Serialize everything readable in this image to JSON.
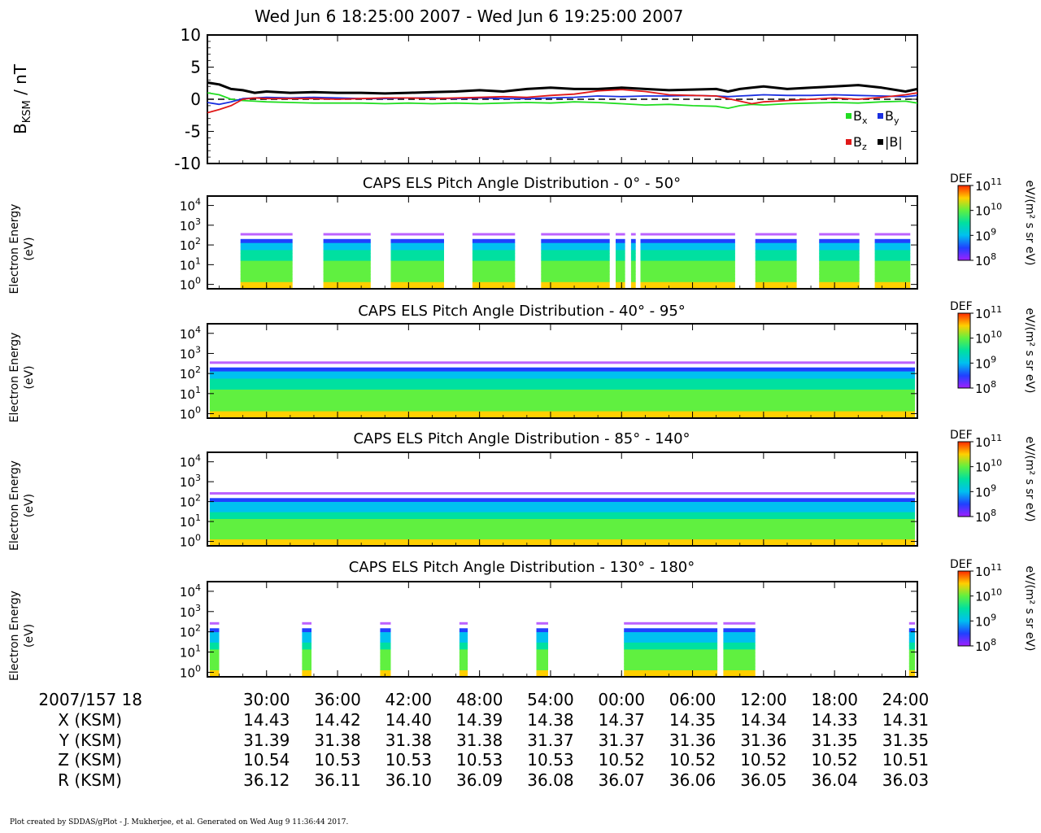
{
  "header": {
    "title": "Wed Jun 6 18:25:00 2007 - Wed Jun 6 19:25:00 2007"
  },
  "footer": {
    "text": "Plot created by SDDAS/gPlot - J. Mukherjee, et al.  Generated on Wed Aug 9 11:36:44 2017."
  },
  "colors": {
    "bx": "#22dd22",
    "by": "#1a2fe0",
    "bz": "#e01818",
    "b_total": "#000000",
    "colormap": [
      "#ff2a00",
      "#ffd000",
      "#60f040",
      "#00e0a0",
      "#00c0f0",
      "#2040ff",
      "#a020ff"
    ]
  },
  "chart_data": [
    {
      "type": "line",
      "ylabel": "B_KSM / nT",
      "ylabel_main": "B",
      "ylabel_sub": "KSM",
      "ylabel_unit": " / nT",
      "ylim": [
        -10,
        10
      ],
      "yticks": [
        -10,
        -5,
        0,
        5,
        10
      ],
      "xlim_minutes": [
        25,
        85
      ],
      "reference_line": 0,
      "legend_placement": "bottom-right",
      "legend": [
        {
          "key": "bx",
          "label": "B",
          "sub": "x"
        },
        {
          "key": "by",
          "label": "B",
          "sub": "y"
        },
        {
          "key": "bz",
          "label": "B",
          "sub": "z"
        },
        {
          "key": "b_total",
          "label": "|B|",
          "sub": ""
        }
      ],
      "x": [
        25,
        26,
        27,
        28,
        29,
        30,
        32,
        34,
        36,
        38,
        40,
        42,
        44,
        46,
        48,
        50,
        52,
        54,
        56,
        58,
        60,
        62,
        64,
        66,
        68,
        69,
        70,
        71,
        72,
        74,
        76,
        78,
        80,
        82,
        84,
        85
      ],
      "series": [
        {
          "name": "Bx",
          "key": "bx",
          "values": [
            1.0,
            0.7,
            0.0,
            -0.2,
            -0.3,
            -0.4,
            -0.5,
            -0.6,
            -0.6,
            -0.6,
            -0.7,
            -0.6,
            -0.7,
            -0.6,
            -0.7,
            -0.6,
            -0.5,
            -0.6,
            -0.4,
            -0.5,
            -0.7,
            -0.9,
            -0.8,
            -1.0,
            -1.1,
            -1.4,
            -1.0,
            -0.8,
            -0.9,
            -0.7,
            -0.6,
            -0.5,
            -0.6,
            -0.4,
            -0.3,
            -0.6
          ]
        },
        {
          "name": "By",
          "key": "by",
          "values": [
            -0.5,
            -0.8,
            -0.4,
            0.1,
            0.2,
            0.3,
            0.2,
            0.3,
            0.2,
            0.1,
            0.1,
            0.2,
            0.2,
            0.1,
            0.2,
            0.1,
            0.1,
            0.2,
            0.3,
            0.5,
            0.4,
            0.5,
            0.5,
            0.6,
            0.5,
            0.4,
            0.5,
            0.6,
            0.7,
            0.6,
            0.6,
            0.7,
            0.6,
            0.5,
            0.4,
            0.6
          ]
        },
        {
          "name": "Bz",
          "key": "bz",
          "values": [
            -2.1,
            -1.6,
            -1.0,
            0.0,
            0.2,
            0.1,
            0.1,
            0.1,
            0.0,
            0.1,
            0.2,
            0.2,
            0.1,
            0.2,
            0.3,
            0.4,
            0.3,
            0.6,
            0.8,
            1.3,
            1.5,
            1.2,
            0.7,
            0.6,
            0.5,
            0.1,
            -0.3,
            -0.7,
            -0.4,
            -0.2,
            0.0,
            0.2,
            0.0,
            0.3,
            0.7,
            1.0
          ]
        },
        {
          "name": "|B|",
          "key": "b_total",
          "values": [
            2.6,
            2.3,
            1.6,
            1.4,
            1.0,
            1.2,
            1.0,
            1.1,
            1.0,
            1.0,
            0.9,
            1.0,
            1.1,
            1.2,
            1.4,
            1.2,
            1.6,
            1.8,
            1.6,
            1.6,
            1.8,
            1.6,
            1.4,
            1.5,
            1.6,
            1.2,
            1.6,
            1.8,
            2.0,
            1.6,
            1.8,
            2.0,
            2.2,
            1.8,
            1.2,
            1.6
          ]
        }
      ]
    },
    {
      "type": "heatmap",
      "title": "CAPS ELS Pitch Angle Distribution - 0° - 50°",
      "ylabel": [
        "Electron Energy",
        "(eV)"
      ],
      "yscale": "log",
      "ylim": [
        0.6,
        30000
      ],
      "yticks": [
        {
          "base": "10",
          "exp": "0"
        },
        {
          "base": "10",
          "exp": "1"
        },
        {
          "base": "10",
          "exp": "2"
        },
        {
          "base": "10",
          "exp": "3"
        },
        {
          "base": "10",
          "exp": "4"
        }
      ],
      "xlim_minutes": [
        25,
        85
      ],
      "top_energy_eV": [
        1,
        200
      ],
      "data_intervals_minutes": [
        [
          27.8,
          32.2
        ],
        [
          34.8,
          38.8
        ],
        [
          40.5,
          45.0
        ],
        [
          47.4,
          51.0
        ],
        [
          53.2,
          59.0
        ],
        [
          59.5,
          60.3
        ],
        [
          60.8,
          61.2
        ],
        [
          61.6,
          69.6
        ],
        [
          71.3,
          74.8
        ],
        [
          76.7,
          80.1
        ],
        [
          81.4,
          84.4
        ]
      ],
      "colorbar": {
        "label": "DEF",
        "unit": "eV/(m² s sr eV)",
        "ticks": [
          {
            "base": "10",
            "exp": "11"
          },
          {
            "base": "10",
            "exp": "10"
          },
          {
            "base": "10",
            "exp": "9"
          },
          {
            "base": "10",
            "exp": "8"
          }
        ]
      }
    },
    {
      "type": "heatmap",
      "title": "CAPS ELS Pitch Angle Distribution - 40° - 95°",
      "ylabel": [
        "Electron Energy",
        "(eV)"
      ],
      "yscale": "log",
      "ylim": [
        0.6,
        30000
      ],
      "yticks": [
        {
          "base": "10",
          "exp": "0"
        },
        {
          "base": "10",
          "exp": "1"
        },
        {
          "base": "10",
          "exp": "2"
        },
        {
          "base": "10",
          "exp": "3"
        },
        {
          "base": "10",
          "exp": "4"
        }
      ],
      "xlim_minutes": [
        25,
        85
      ],
      "top_energy_eV": [
        1,
        200
      ],
      "data_intervals_minutes": [
        [
          25.2,
          84.8
        ]
      ],
      "colorbar": {
        "label": "DEF",
        "unit": "eV/(m² s sr eV)",
        "ticks": [
          {
            "base": "10",
            "exp": "11"
          },
          {
            "base": "10",
            "exp": "10"
          },
          {
            "base": "10",
            "exp": "9"
          },
          {
            "base": "10",
            "exp": "8"
          }
        ]
      }
    },
    {
      "type": "heatmap",
      "title": "CAPS ELS Pitch Angle Distribution - 85° - 140°",
      "ylabel": [
        "Electron Energy",
        "(eV)"
      ],
      "yscale": "log",
      "ylim": [
        0.6,
        30000
      ],
      "yticks": [
        {
          "base": "10",
          "exp": "0"
        },
        {
          "base": "10",
          "exp": "1"
        },
        {
          "base": "10",
          "exp": "2"
        },
        {
          "base": "10",
          "exp": "3"
        },
        {
          "base": "10",
          "exp": "4"
        }
      ],
      "xlim_minutes": [
        25,
        85
      ],
      "top_energy_eV": [
        1,
        150
      ],
      "data_intervals_minutes": [
        [
          25.2,
          84.8
        ]
      ],
      "colorbar": {
        "label": "DEF",
        "unit": "eV/(m² s sr eV)",
        "ticks": [
          {
            "base": "10",
            "exp": "11"
          },
          {
            "base": "10",
            "exp": "10"
          },
          {
            "base": "10",
            "exp": "9"
          },
          {
            "base": "10",
            "exp": "8"
          }
        ]
      }
    },
    {
      "type": "heatmap",
      "title": "CAPS ELS Pitch Angle Distribution - 130° - 180°",
      "ylabel": [
        "Electron Energy",
        "(eV)"
      ],
      "yscale": "log",
      "ylim": [
        0.6,
        30000
      ],
      "yticks": [
        {
          "base": "10",
          "exp": "0"
        },
        {
          "base": "10",
          "exp": "1"
        },
        {
          "base": "10",
          "exp": "2"
        },
        {
          "base": "10",
          "exp": "3"
        },
        {
          "base": "10",
          "exp": "4"
        }
      ],
      "xlim_minutes": [
        25,
        85
      ],
      "top_energy_eV": [
        1,
        150
      ],
      "data_intervals_minutes": [
        [
          25.2,
          26.0
        ],
        [
          33.0,
          33.8
        ],
        [
          39.6,
          40.5
        ],
        [
          46.3,
          47.0
        ],
        [
          52.8,
          53.8
        ],
        [
          60.2,
          68.1
        ],
        [
          68.6,
          71.3
        ],
        [
          84.3,
          84.8
        ]
      ],
      "colorbar": {
        "label": "DEF",
        "unit": "eV/(m² s sr eV)",
        "ticks": [
          {
            "base": "10",
            "exp": "11"
          },
          {
            "base": "10",
            "exp": "10"
          },
          {
            "base": "10",
            "exp": "9"
          },
          {
            "base": "10",
            "exp": "8"
          }
        ]
      }
    }
  ],
  "time_axis": {
    "start_label": "2007/157 18",
    "tick_minutes": [
      30,
      36,
      42,
      48,
      54,
      60,
      66,
      72,
      78,
      84
    ],
    "tick_labels": [
      "30:00",
      "36:00",
      "42:00",
      "48:00",
      "54:00",
      "00:00",
      "06:00",
      "12:00",
      "18:00",
      "24:00"
    ]
  },
  "ephemeris": [
    {
      "label": "X (KSM)",
      "values": [
        "14.43",
        "14.42",
        "14.40",
        "14.39",
        "14.38",
        "14.37",
        "14.35",
        "14.34",
        "14.33",
        "14.31"
      ]
    },
    {
      "label": "Y (KSM)",
      "values": [
        "31.39",
        "31.38",
        "31.38",
        "31.38",
        "31.37",
        "31.37",
        "31.36",
        "31.36",
        "31.35",
        "31.35"
      ]
    },
    {
      "label": "Z (KSM)",
      "values": [
        "10.54",
        "10.53",
        "10.53",
        "10.53",
        "10.53",
        "10.52",
        "10.52",
        "10.52",
        "10.52",
        "10.51"
      ]
    },
    {
      "label": "R (KSM)",
      "values": [
        "36.12",
        "36.11",
        "36.10",
        "36.09",
        "36.08",
        "36.07",
        "36.06",
        "36.05",
        "36.04",
        "36.03"
      ]
    }
  ]
}
